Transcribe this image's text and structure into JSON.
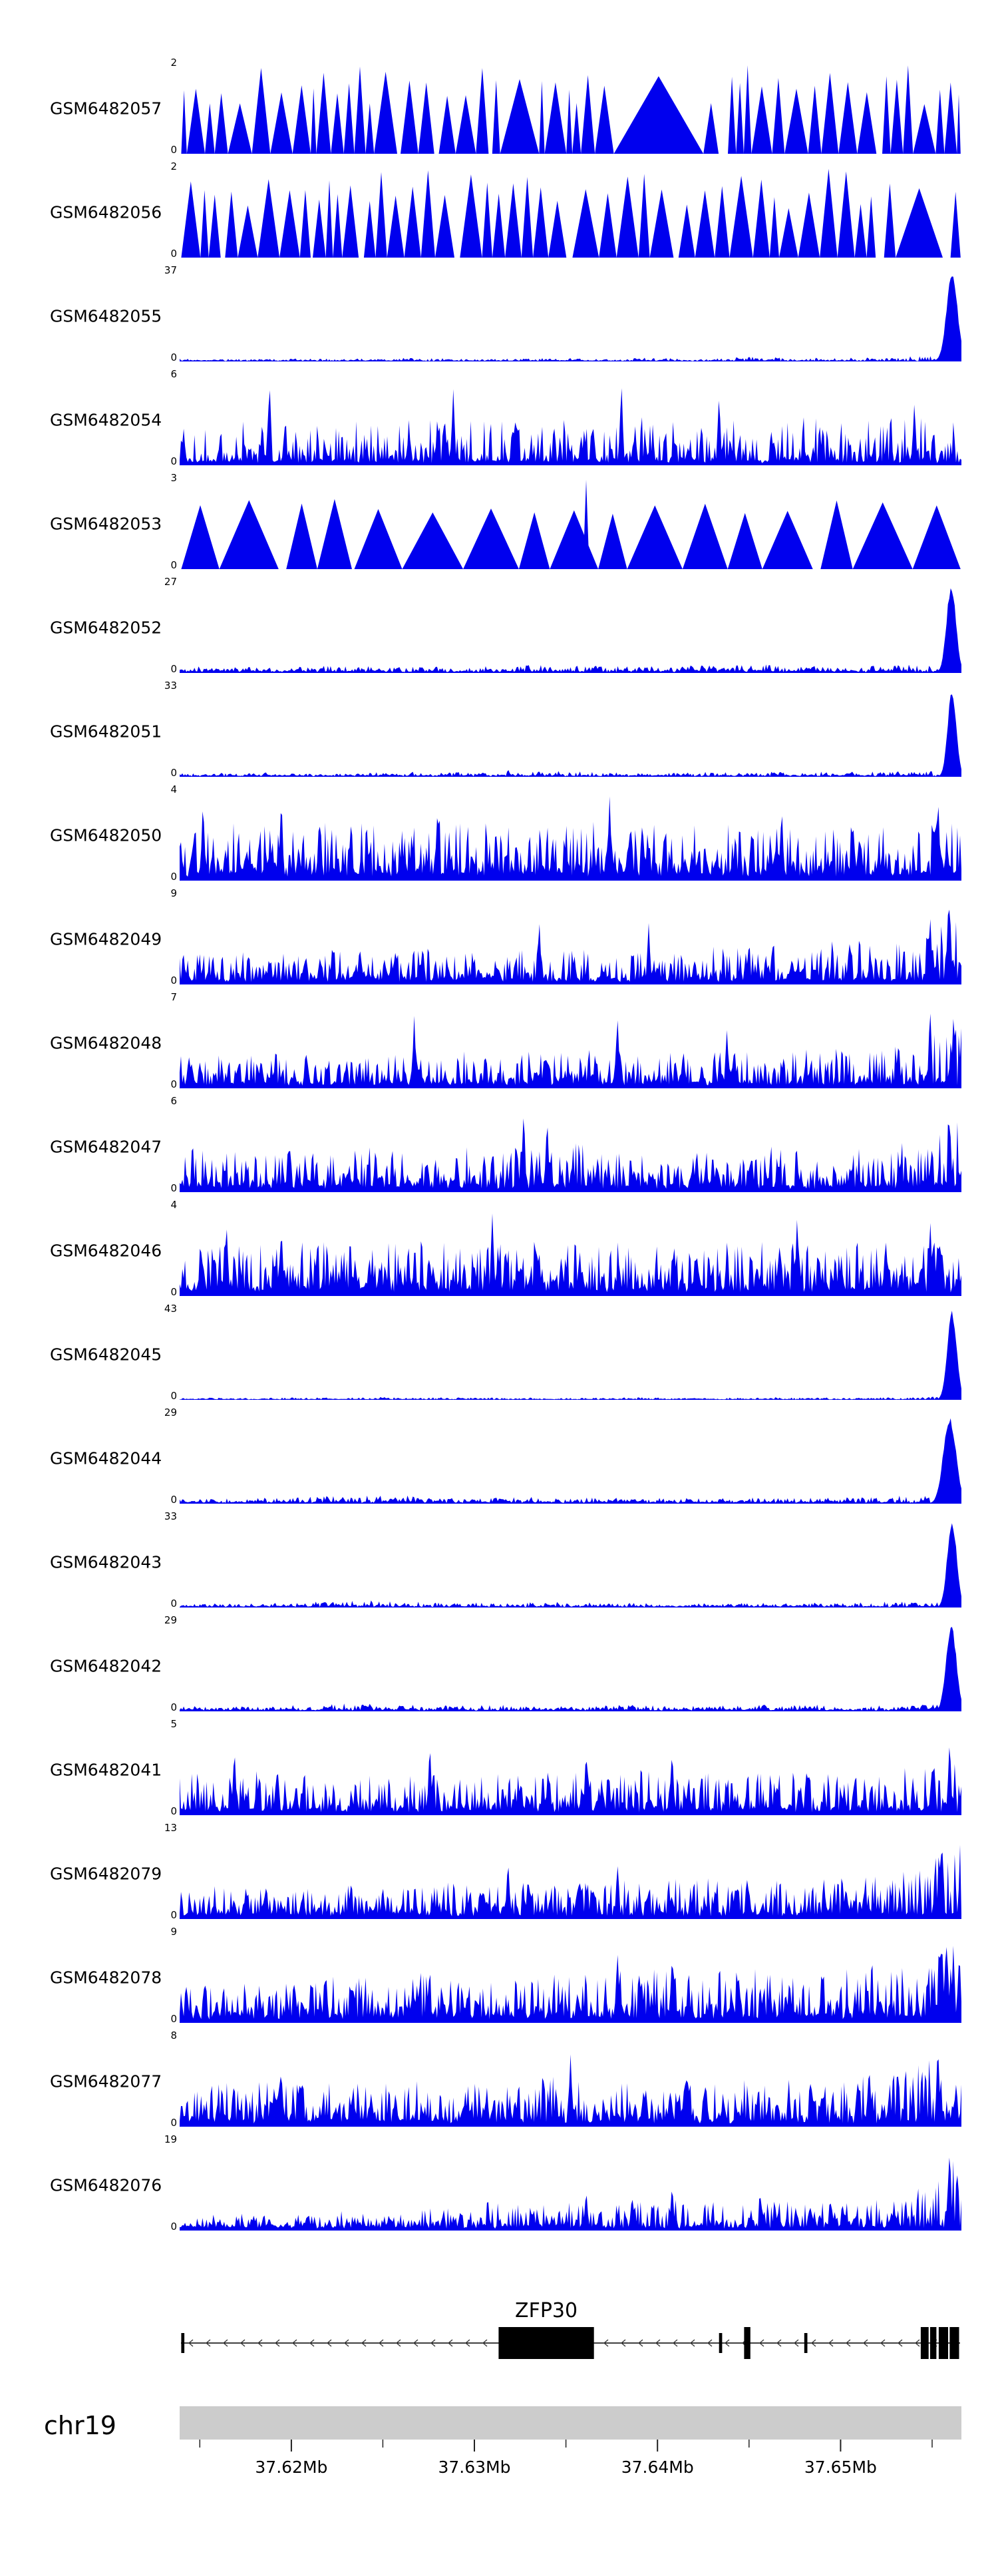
{
  "figure": {
    "description": "Genome browser coverage tracks over ZFP30 locus",
    "y_zero_label": "0"
  },
  "chart_data": {
    "type": "area",
    "title": "",
    "xlabel": "",
    "ylabel": "",
    "legend": "none",
    "grid": false,
    "signal_color": "#0000ee",
    "region": {
      "chrom": "chr19",
      "start_mb": 37.6139,
      "end_mb": 37.6566,
      "minor_tick_step_mb": 0.005,
      "minor_tick_first_mb": 37.615,
      "minor_tick_count": 9,
      "major_ticks": [
        {
          "mb": 37.62,
          "label": "37.62Mb"
        },
        {
          "mb": 37.63,
          "label": "37.63Mb"
        },
        {
          "mb": 37.64,
          "label": "37.64Mb"
        },
        {
          "mb": 37.65,
          "label": "37.65Mb"
        }
      ],
      "bar_color": "#cccccc",
      "tick_color": "#222222"
    },
    "gene": {
      "name": "ZFP30",
      "strand": "minus",
      "label_x": 0.469,
      "line_color": "#000000",
      "exon_color": "#000000",
      "exons": [
        [
          0.002,
          0.004,
          "m"
        ],
        [
          0.408,
          0.122,
          "t"
        ],
        [
          0.69,
          0.004,
          "m"
        ],
        [
          0.722,
          0.008,
          "t"
        ],
        [
          0.799,
          0.004,
          "m"
        ],
        [
          0.948,
          0.01,
          "t"
        ],
        [
          0.96,
          0.008,
          "t"
        ],
        [
          0.971,
          0.012,
          "t"
        ],
        [
          0.985,
          0.012,
          "t"
        ]
      ]
    },
    "tracks": [
      {
        "name": "GSM6482057",
        "ymax": "2",
        "style": "triangles",
        "seed": 3,
        "wide_prob": 0.05,
        "wide_mult": 4,
        "envelope": [
          1,
          1,
          1,
          1,
          1,
          1,
          1,
          1,
          1,
          1,
          1,
          1,
          1,
          1,
          1,
          1
        ]
      },
      {
        "name": "GSM6482056",
        "ymax": "2",
        "style": "triangles",
        "seed": 8,
        "wide_prob": 0.07,
        "wide_mult": 3.5,
        "envelope": [
          1,
          1,
          1,
          1,
          1,
          1,
          1,
          1,
          1,
          1,
          1,
          1,
          1,
          1,
          1,
          1
        ]
      },
      {
        "name": "GSM6482055",
        "ymax": "37",
        "style": "peakright",
        "seed": 5,
        "base": 0.012,
        "peak": {
          "c": 0.988,
          "w": 0.007
        },
        "envelope": [
          0.02,
          0.02,
          0.03,
          0.02,
          0.03,
          0.03,
          0.02,
          0.03,
          0.02,
          0.03,
          0.03,
          0.04,
          0.03,
          0.04,
          0.05,
          0.06
        ]
      },
      {
        "name": "GSM6482054",
        "ymax": "6",
        "style": "spiky",
        "seed": 12,
        "base": 0.06,
        "pw": 2.4,
        "envelope": [
          0.5,
          0.45,
          0.5,
          0.42,
          0.48,
          0.5,
          0.44,
          0.5,
          0.46,
          0.5,
          0.44,
          0.48,
          0.5,
          0.46,
          0.5,
          0.48
        ],
        "spikes": [
          [
            0.115,
            1.0
          ],
          [
            0.35,
            0.88
          ],
          [
            0.565,
            1.0
          ],
          [
            0.69,
            0.85
          ],
          [
            0.94,
            0.75
          ]
        ]
      },
      {
        "name": "GSM6482053",
        "ymax": "3",
        "style": "widetriangles",
        "seed": 21,
        "hmin": 0.62,
        "hmax": 0.8,
        "gap_prob": 0.25,
        "envelope": [
          1,
          1,
          1,
          1,
          1,
          1,
          1,
          1,
          1,
          1,
          1,
          1,
          1,
          1,
          1,
          1
        ],
        "overlay_spikes": [
          [
            0.52,
            1.0,
            0.004
          ]
        ]
      },
      {
        "name": "GSM6482052",
        "ymax": "27",
        "style": "peakright",
        "seed": 31,
        "base": 0.025,
        "peak": {
          "c": 0.987,
          "w": 0.006
        },
        "envelope": [
          0.05,
          0.06,
          0.05,
          0.07,
          0.06,
          0.05,
          0.06,
          0.08,
          0.06,
          0.07,
          0.06,
          0.08,
          0.07,
          0.06,
          0.08,
          0.1
        ]
      },
      {
        "name": "GSM6482051",
        "ymax": "33",
        "style": "peakright",
        "seed": 41,
        "base": 0.018,
        "peak": {
          "c": 0.988,
          "w": 0.0055
        },
        "envelope": [
          0.03,
          0.03,
          0.04,
          0.03,
          0.04,
          0.05,
          0.03,
          0.06,
          0.04,
          0.03,
          0.04,
          0.04,
          0.05,
          0.04,
          0.05,
          0.07
        ],
        "spikes": [
          [
            0.42,
            0.1,
            0.003
          ]
        ]
      },
      {
        "name": "GSM6482050",
        "ymax": "4",
        "style": "spiky",
        "seed": 51,
        "base": 0.1,
        "pw": 1.8,
        "envelope": [
          0.55,
          0.6,
          0.55,
          0.6,
          0.55,
          0.6,
          0.58,
          0.55,
          0.6,
          0.55,
          0.6,
          0.55,
          0.58,
          0.6,
          0.55,
          0.65
        ],
        "spikes": [
          [
            0.03,
            0.95
          ],
          [
            0.13,
            1.0
          ],
          [
            0.33,
            0.92
          ],
          [
            0.55,
            0.95
          ],
          [
            0.77,
            0.88
          ],
          [
            0.97,
            1.0
          ]
        ]
      },
      {
        "name": "GSM6482049",
        "ymax": "9",
        "style": "spiky",
        "seed": 61,
        "base": 0.07,
        "pw": 2.1,
        "envelope": [
          0.3,
          0.32,
          0.3,
          0.34,
          0.32,
          0.35,
          0.36,
          0.34,
          0.38,
          0.36,
          0.4,
          0.38,
          0.42,
          0.45,
          0.5,
          0.8
        ],
        "spikes": [
          [
            0.46,
            0.78
          ],
          [
            0.6,
            0.7
          ],
          [
            0.96,
            0.85
          ],
          [
            0.985,
            1.0
          ]
        ]
      },
      {
        "name": "GSM6482048",
        "ymax": "7",
        "style": "spiky",
        "seed": 71,
        "base": 0.07,
        "pw": 2.1,
        "envelope": [
          0.35,
          0.32,
          0.35,
          0.3,
          0.35,
          0.38,
          0.34,
          0.4,
          0.36,
          0.38,
          0.35,
          0.4,
          0.38,
          0.4,
          0.45,
          0.75
        ],
        "spikes": [
          [
            0.3,
            0.82
          ],
          [
            0.56,
            0.88
          ],
          [
            0.7,
            0.72
          ],
          [
            0.96,
            1.0
          ],
          [
            0.99,
            0.9
          ]
        ]
      },
      {
        "name": "GSM6482047",
        "ymax": "6",
        "style": "spiky",
        "seed": 81,
        "base": 0.08,
        "pw": 2.0,
        "envelope": [
          0.45,
          0.4,
          0.42,
          0.4,
          0.44,
          0.42,
          0.45,
          0.5,
          0.46,
          0.44,
          0.42,
          0.45,
          0.42,
          0.44,
          0.5,
          0.8
        ],
        "spikes": [
          [
            0.44,
            1.0
          ],
          [
            0.47,
            0.9
          ],
          [
            0.985,
            0.95
          ]
        ]
      },
      {
        "name": "GSM6482046",
        "ymax": "4",
        "style": "spiky",
        "seed": 91,
        "base": 0.1,
        "pw": 1.8,
        "envelope": [
          0.55,
          0.5,
          0.55,
          0.52,
          0.55,
          0.5,
          0.55,
          0.52,
          0.55,
          0.5,
          0.55,
          0.52,
          0.5,
          0.55,
          0.52,
          0.6
        ],
        "spikes": [
          [
            0.06,
            0.9
          ],
          [
            0.4,
            1.0
          ],
          [
            0.79,
            0.95
          ],
          [
            0.96,
            0.9
          ]
        ]
      },
      {
        "name": "GSM6482045",
        "ymax": "43",
        "style": "peakright",
        "seed": 101,
        "base": 0.01,
        "peak": {
          "c": 0.988,
          "w": 0.006
        },
        "envelope": [
          0.015,
          0.015,
          0.02,
          0.02,
          0.025,
          0.02,
          0.02,
          0.015,
          0.02,
          0.02,
          0.015,
          0.02,
          0.02,
          0.02,
          0.025,
          0.03
        ]
      },
      {
        "name": "GSM6482044",
        "ymax": "29",
        "style": "peakright",
        "seed": 111,
        "base": 0.022,
        "peak": {
          "c": 0.985,
          "w": 0.008
        },
        "envelope": [
          0.04,
          0.04,
          0.05,
          0.08,
          0.1,
          0.05,
          0.05,
          0.06,
          0.05,
          0.05,
          0.04,
          0.05,
          0.05,
          0.06,
          0.07,
          0.1
        ]
      },
      {
        "name": "GSM6482043",
        "ymax": "33",
        "style": "peakright",
        "seed": 121,
        "base": 0.018,
        "peak": {
          "c": 0.988,
          "w": 0.006
        },
        "envelope": [
          0.03,
          0.03,
          0.04,
          0.06,
          0.07,
          0.04,
          0.04,
          0.05,
          0.04,
          0.04,
          0.03,
          0.04,
          0.04,
          0.05,
          0.05,
          0.08
        ]
      },
      {
        "name": "GSM6482042",
        "ymax": "29",
        "style": "peakright",
        "seed": 131,
        "base": 0.022,
        "peak": {
          "c": 0.987,
          "w": 0.0065
        },
        "envelope": [
          0.04,
          0.04,
          0.05,
          0.07,
          0.06,
          0.05,
          0.06,
          0.05,
          0.06,
          0.05,
          0.04,
          0.05,
          0.06,
          0.05,
          0.06,
          0.09
        ]
      },
      {
        "name": "GSM6482041",
        "ymax": "5",
        "style": "spiky",
        "seed": 141,
        "base": 0.08,
        "pw": 2.1,
        "envelope": [
          0.42,
          0.4,
          0.45,
          0.4,
          0.44,
          0.42,
          0.4,
          0.45,
          0.42,
          0.44,
          0.4,
          0.42,
          0.45,
          0.42,
          0.46,
          0.6
        ],
        "spikes": [
          [
            0.07,
            0.8
          ],
          [
            0.32,
            0.85
          ],
          [
            0.52,
            0.78
          ],
          [
            0.63,
            0.8
          ],
          [
            0.985,
            0.9
          ]
        ]
      },
      {
        "name": "GSM6482079",
        "ymax": "13",
        "style": "spiky",
        "seed": 151,
        "base": 0.07,
        "pw": 2.0,
        "envelope": [
          0.3,
          0.32,
          0.3,
          0.34,
          0.32,
          0.36,
          0.34,
          0.38,
          0.4,
          0.36,
          0.42,
          0.4,
          0.44,
          0.42,
          0.5,
          0.85
        ],
        "spikes": [
          [
            0.42,
            0.72
          ],
          [
            0.56,
            0.66
          ],
          [
            0.975,
            1.0
          ]
        ]
      },
      {
        "name": "GSM6482078",
        "ymax": "9",
        "style": "spiky",
        "seed": 161,
        "base": 0.09,
        "pw": 1.8,
        "envelope": [
          0.35,
          0.42,
          0.36,
          0.48,
          0.4,
          0.52,
          0.44,
          0.5,
          0.46,
          0.55,
          0.48,
          0.6,
          0.5,
          0.55,
          0.6,
          0.9
        ],
        "spikes": [
          [
            0.56,
            0.9
          ],
          [
            0.63,
            0.85
          ],
          [
            0.975,
            1.0
          ]
        ]
      },
      {
        "name": "GSM6482077",
        "ymax": "8",
        "style": "spiky",
        "seed": 171,
        "base": 0.09,
        "pw": 1.9,
        "envelope": [
          0.4,
          0.44,
          0.4,
          0.46,
          0.42,
          0.48,
          0.44,
          0.5,
          0.44,
          0.48,
          0.42,
          0.5,
          0.46,
          0.5,
          0.55,
          0.9
        ],
        "spikes": [
          [
            0.13,
            0.72
          ],
          [
            0.5,
            0.82
          ],
          [
            0.97,
            1.0
          ]
        ]
      },
      {
        "name": "GSM6482076",
        "ymax": "19",
        "style": "spiky",
        "seed": 181,
        "base": 0.05,
        "pw": 2.0,
        "envelope": [
          0.12,
          0.15,
          0.13,
          0.18,
          0.15,
          0.22,
          0.28,
          0.25,
          0.3,
          0.33,
          0.3,
          0.35,
          0.28,
          0.3,
          0.35,
          0.85
        ],
        "spikes": [
          [
            0.52,
            0.5
          ],
          [
            0.63,
            0.55
          ],
          [
            0.985,
            1.0
          ]
        ]
      }
    ]
  }
}
